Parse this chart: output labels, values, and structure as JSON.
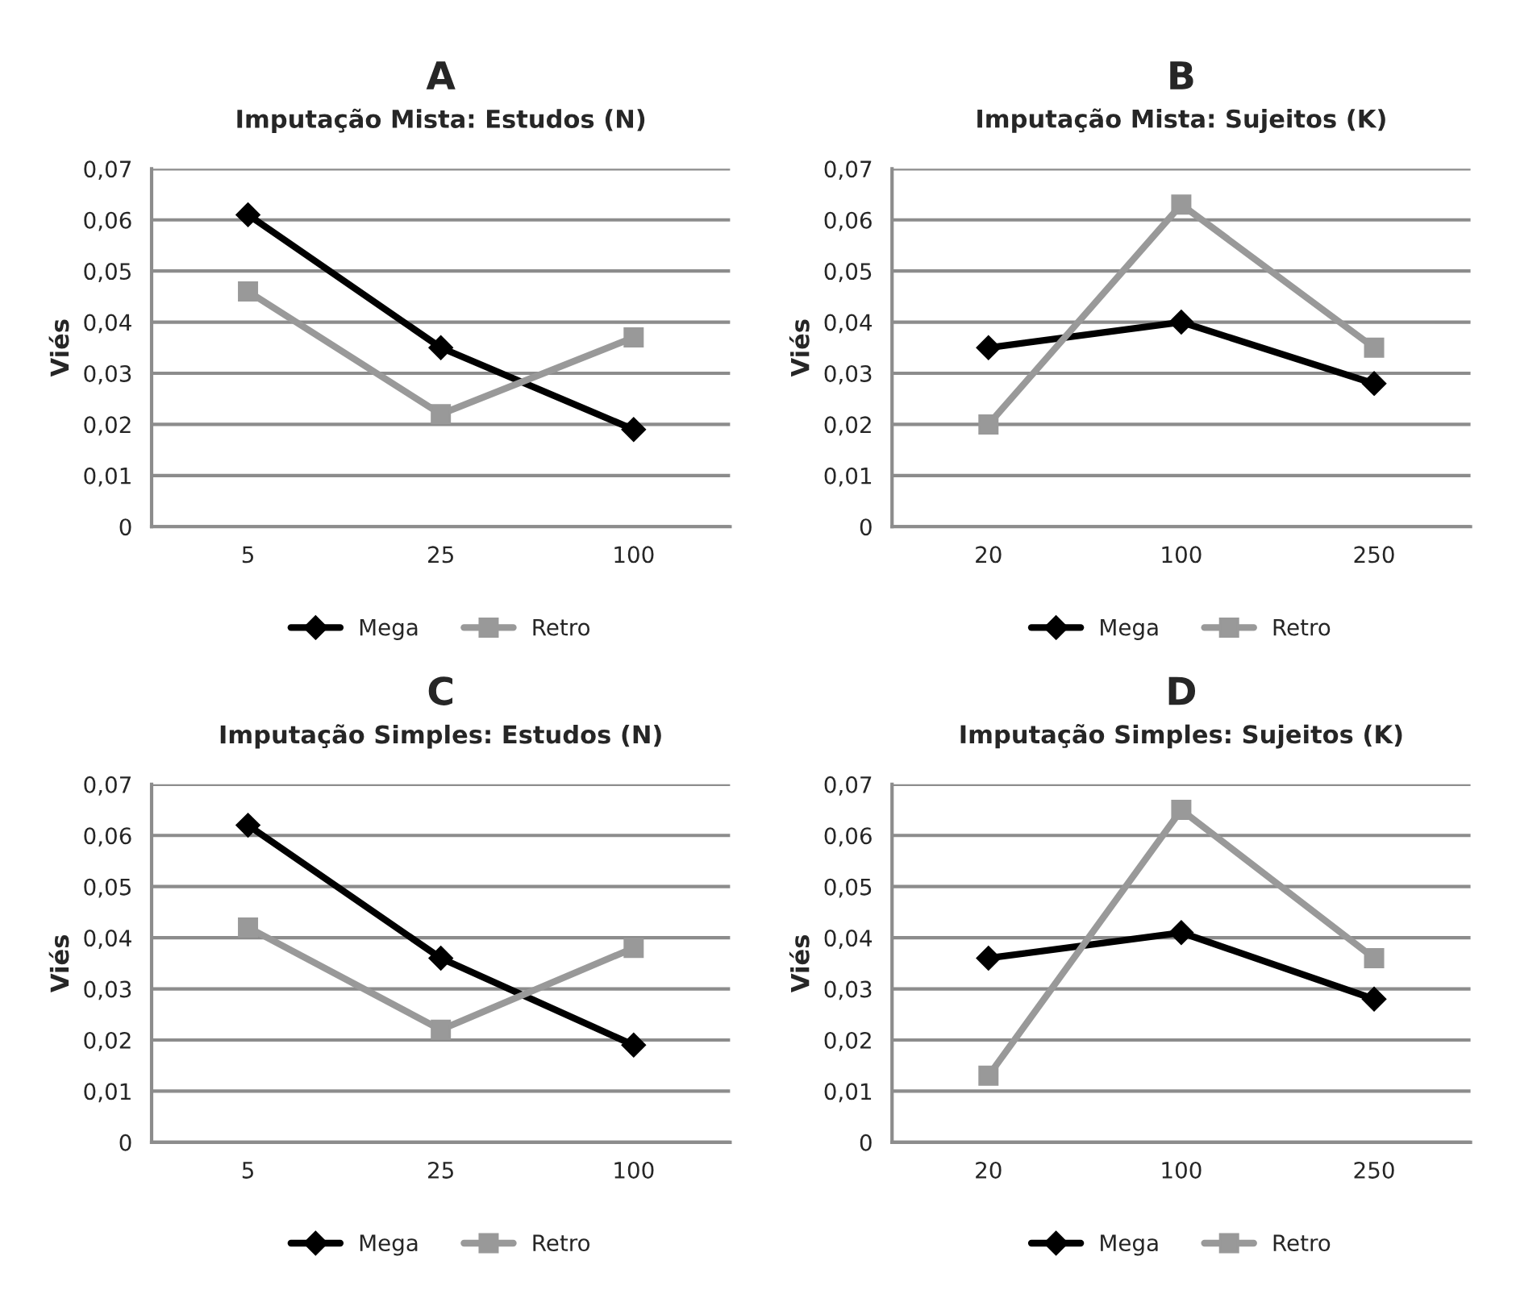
{
  "chart_data": [
    {
      "type": "line",
      "title": "A",
      "subtitle": "Imputação Mista: Estudos (N)",
      "ylabel": "Viés",
      "categories": [
        "5",
        "25",
        "100"
      ],
      "ylim": [
        0,
        0.07
      ],
      "yticks": [
        {
          "value": 0,
          "label": "0"
        },
        {
          "value": 0.01,
          "label": "0,01"
        },
        {
          "value": 0.02,
          "label": "0,02"
        },
        {
          "value": 0.03,
          "label": "0,03"
        },
        {
          "value": 0.04,
          "label": "0,04"
        },
        {
          "value": 0.05,
          "label": "0,05"
        },
        {
          "value": 0.06,
          "label": "0,06"
        },
        {
          "value": 0.07,
          "label": "0,07"
        }
      ],
      "grid": "y",
      "legend": "bottom",
      "series": [
        {
          "name": "Mega",
          "color": "#000000",
          "marker": "diamond",
          "values": [
            0.061,
            0.035,
            0.019
          ]
        },
        {
          "name": "Retro",
          "color": "#999999",
          "marker": "square",
          "values": [
            0.046,
            0.022,
            0.037
          ]
        }
      ]
    },
    {
      "type": "line",
      "title": "B",
      "subtitle": "Imputação Mista: Sujeitos (K)",
      "ylabel": "Viés",
      "categories": [
        "20",
        "100",
        "250"
      ],
      "ylim": [
        0,
        0.07
      ],
      "yticks": [
        {
          "value": 0,
          "label": "0"
        },
        {
          "value": 0.01,
          "label": "0,01"
        },
        {
          "value": 0.02,
          "label": "0,02"
        },
        {
          "value": 0.03,
          "label": "0,03"
        },
        {
          "value": 0.04,
          "label": "0,04"
        },
        {
          "value": 0.05,
          "label": "0,05"
        },
        {
          "value": 0.06,
          "label": "0,06"
        },
        {
          "value": 0.07,
          "label": "0,07"
        }
      ],
      "grid": "y",
      "legend": "bottom",
      "series": [
        {
          "name": "Mega",
          "color": "#000000",
          "marker": "diamond",
          "values": [
            0.035,
            0.04,
            0.028
          ]
        },
        {
          "name": "Retro",
          "color": "#999999",
          "marker": "square",
          "values": [
            0.02,
            0.063,
            0.035
          ]
        }
      ]
    },
    {
      "type": "line",
      "title": "C",
      "subtitle": "Imputação Simples: Estudos (N)",
      "ylabel": "Viés",
      "categories": [
        "5",
        "25",
        "100"
      ],
      "ylim": [
        0,
        0.07
      ],
      "yticks": [
        {
          "value": 0,
          "label": "0"
        },
        {
          "value": 0.01,
          "label": "0,01"
        },
        {
          "value": 0.02,
          "label": "0,02"
        },
        {
          "value": 0.03,
          "label": "0,03"
        },
        {
          "value": 0.04,
          "label": "0,04"
        },
        {
          "value": 0.05,
          "label": "0,05"
        },
        {
          "value": 0.06,
          "label": "0,06"
        },
        {
          "value": 0.07,
          "label": "0,07"
        }
      ],
      "grid": "y",
      "legend": "bottom",
      "series": [
        {
          "name": "Mega",
          "color": "#000000",
          "marker": "diamond",
          "values": [
            0.062,
            0.036,
            0.019
          ]
        },
        {
          "name": "Retro",
          "color": "#999999",
          "marker": "square",
          "values": [
            0.042,
            0.022,
            0.038
          ]
        }
      ]
    },
    {
      "type": "line",
      "title": "D",
      "subtitle": "Imputação Simples: Sujeitos (K)",
      "ylabel": "Viés",
      "categories": [
        "20",
        "100",
        "250"
      ],
      "ylim": [
        0,
        0.07
      ],
      "yticks": [
        {
          "value": 0,
          "label": "0"
        },
        {
          "value": 0.01,
          "label": "0,01"
        },
        {
          "value": 0.02,
          "label": "0,02"
        },
        {
          "value": 0.03,
          "label": "0,03"
        },
        {
          "value": 0.04,
          "label": "0,04"
        },
        {
          "value": 0.05,
          "label": "0,05"
        },
        {
          "value": 0.06,
          "label": "0,06"
        },
        {
          "value": 0.07,
          "label": "0,07"
        }
      ],
      "grid": "y",
      "legend": "bottom",
      "series": [
        {
          "name": "Mega",
          "color": "#000000",
          "marker": "diamond",
          "values": [
            0.036,
            0.041,
            0.028
          ]
        },
        {
          "name": "Retro",
          "color": "#999999",
          "marker": "square",
          "values": [
            0.013,
            0.065,
            0.036
          ]
        }
      ]
    }
  ]
}
